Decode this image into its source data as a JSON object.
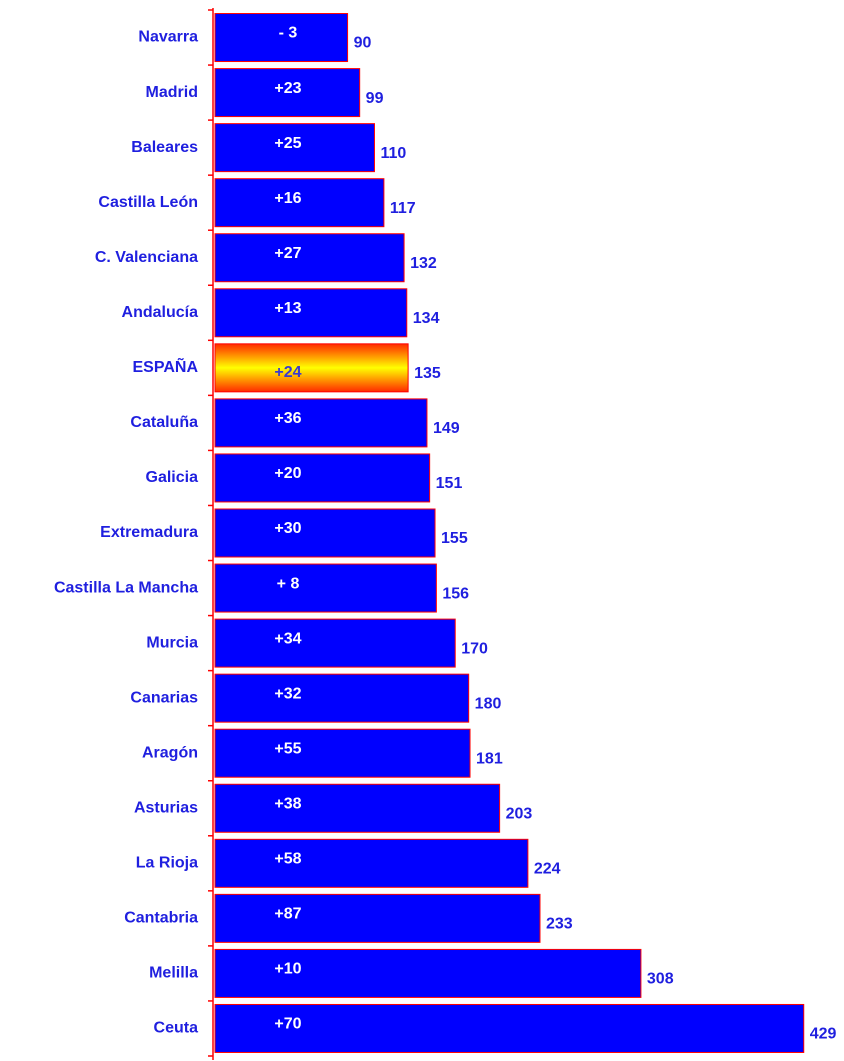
{
  "chart_data": {
    "type": "hbar",
    "categories": [
      "Navarra",
      "Madrid",
      "Baleares",
      "Castilla León",
      "C. Valenciana",
      "Andalucía",
      "ESPAÑA",
      "Cataluña",
      "Galicia",
      "Extremadura",
      "Castilla La Mancha",
      "Murcia",
      "Canarias",
      "Aragón",
      "Asturias",
      "La Rioja",
      "Cantabria",
      "Melilla",
      "Ceuta"
    ],
    "values": [
      90,
      99,
      110,
      117,
      132,
      134,
      135,
      149,
      151,
      155,
      156,
      170,
      180,
      181,
      203,
      224,
      233,
      308,
      429
    ],
    "bar_annotations": [
      "- 3",
      "+23",
      "+25",
      "+16",
      "+27",
      "+13",
      "+24",
      "+36",
      "+20",
      "+30",
      "+ 8",
      "+34",
      "+32",
      "+55",
      "+38",
      "+58",
      "+87",
      "+10",
      "+70"
    ],
    "color": "#0000ff",
    "edge_color": "#ff0000",
    "highlight_index": 6,
    "highlight_colors": [
      "#ffff00",
      "#ff2a00"
    ],
    "label_color": "#1f1fdf",
    "xlim": [
      -10,
      450
    ]
  }
}
